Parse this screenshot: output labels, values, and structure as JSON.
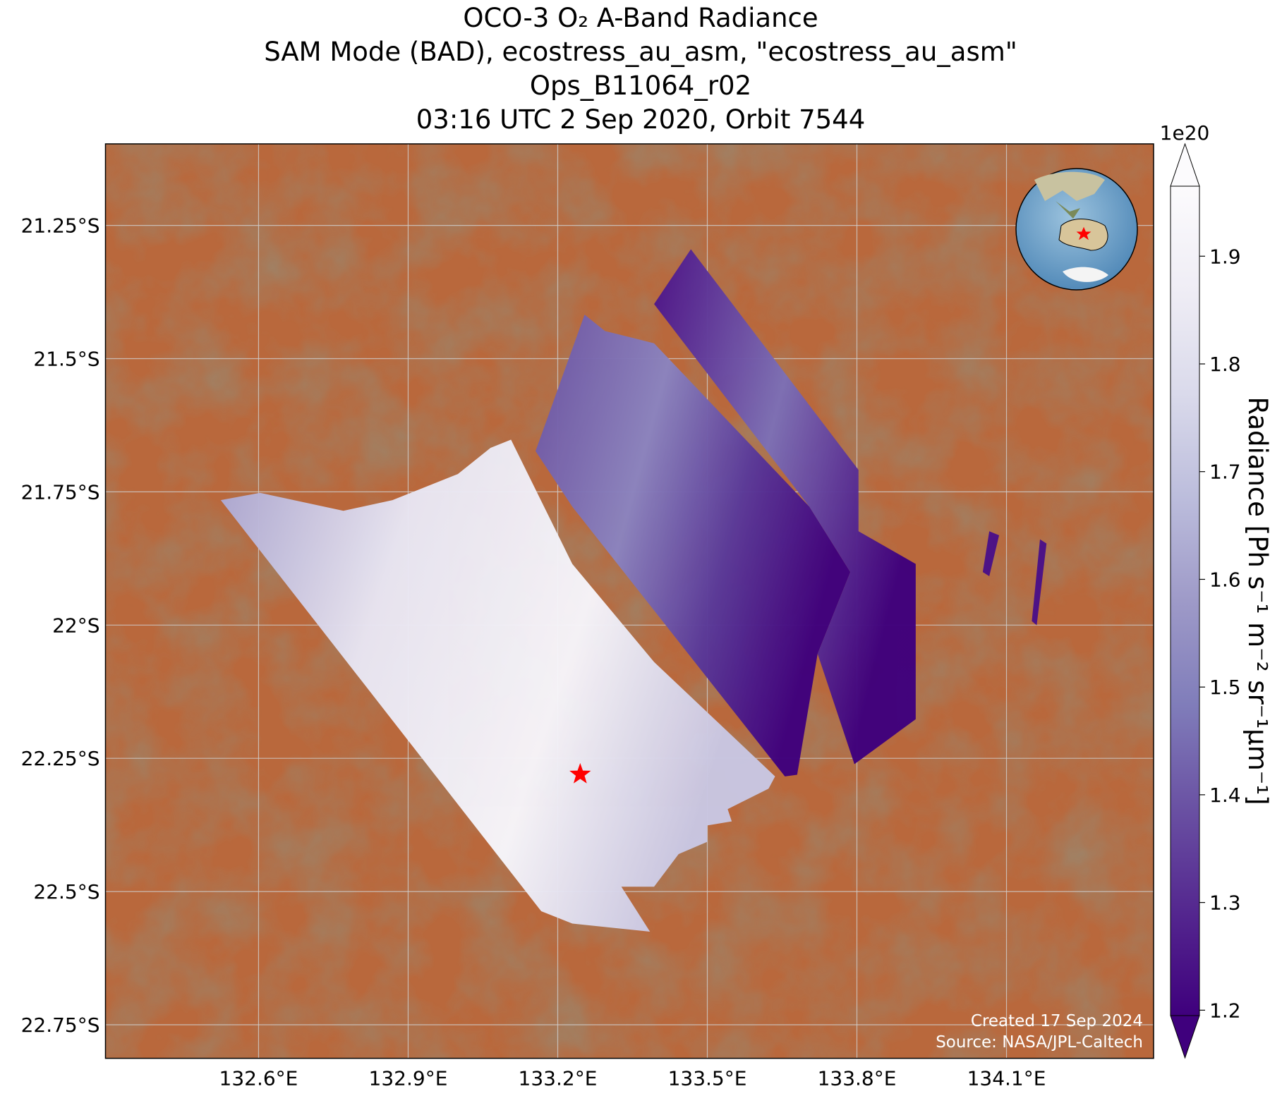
{
  "chart_data": {
    "type": "map",
    "title": [
      "OCO-3 O₂ A-Band Radiance",
      "SAM Mode (BAD), ecostress_au_asm, \"ecostress_au_asm\"",
      "Ops_B11064_r02",
      "03:16 UTC 2 Sep 2020, Orbit 7544"
    ],
    "xlim": [
      132.293,
      134.395
    ],
    "ylim": [
      -22.813,
      -21.097
    ],
    "xticks": [
      {
        "value": 132.6,
        "label": "132.6°E"
      },
      {
        "value": 132.9,
        "label": "132.9°E"
      },
      {
        "value": 133.2,
        "label": "133.2°E"
      },
      {
        "value": 133.5,
        "label": "133.5°E"
      },
      {
        "value": 133.8,
        "label": "133.8°E"
      },
      {
        "value": 134.1,
        "label": "134.1°E"
      }
    ],
    "yticks": [
      {
        "value": -21.25,
        "label": "21.25°S"
      },
      {
        "value": -21.5,
        "label": "21.5°S"
      },
      {
        "value": -21.75,
        "label": "21.75°S"
      },
      {
        "value": -22,
        "label": "22°S"
      },
      {
        "value": -22.25,
        "label": "22.25°S"
      },
      {
        "value": -22.5,
        "label": "22.5°S"
      },
      {
        "value": -22.75,
        "label": "22.75°S"
      }
    ],
    "grid": true,
    "marker": {
      "x": 133.245,
      "y": -22.28,
      "color": "#ff0000"
    },
    "colorbar": {
      "label": "Radiance [Ph s⁻¹ m⁻² sr⁻¹μm⁻¹]",
      "lim": [
        1.195,
        1.965
      ],
      "ticks": [
        1.2,
        1.3,
        1.4,
        1.5,
        1.6,
        1.7,
        1.8,
        1.9
      ],
      "offset_label": "1e20",
      "colors": [
        "#3f007d",
        "#54278f",
        "#6a51a3",
        "#807dba",
        "#9e9ac8",
        "#bcbddc",
        "#dadaeb",
        "#efedf5",
        "#fcfbfd"
      ]
    },
    "annotations": [
      "Created 17 Sep 2024",
      "Source: NASA/JPL-Caltech"
    ]
  }
}
